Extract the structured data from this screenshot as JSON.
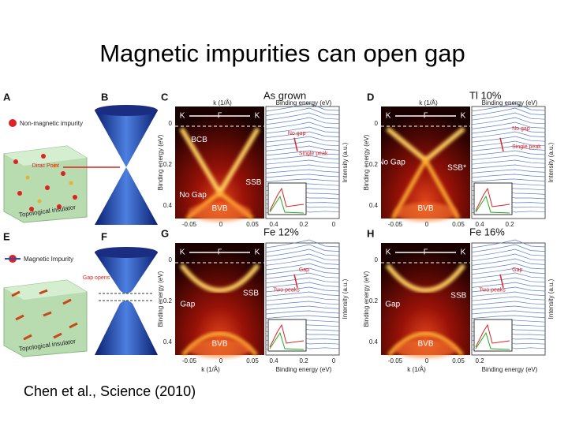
{
  "title": "Magnetic impurities can open gap",
  "citation": "Chen et al., Science (2010)",
  "figure": {
    "panel_a": {
      "label": "A",
      "legend": "Non-magnetic impurity",
      "dirac_point": "Dirac Point",
      "material": "Topological insulator"
    },
    "panel_b": {
      "label": "B"
    },
    "panel_c": {
      "label": "C",
      "title": "As grown",
      "k_axis": "k (1/Å)",
      "energy_axis": "Binding energy (eV)",
      "directions": [
        "K",
        "Γ",
        "K"
      ],
      "features": [
        "BCB",
        "SSB",
        "No Gap",
        "BVB"
      ],
      "energy_ticks": [
        "0",
        "0.2",
        "0.4"
      ],
      "k_ticks": [
        "-0.05",
        "0",
        "0.05"
      ],
      "spectrum": {
        "energy_axis": "Binding energy (eV)",
        "intensity_axis": "Intensity (a.u.)",
        "annotations": [
          "No gap",
          "Single peak"
        ],
        "energy_ticks": [
          "0.4",
          "0.2",
          "0"
        ]
      }
    },
    "panel_d": {
      "label": "D",
      "title": "Tl 10%",
      "k_axis": "k (1/Å)",
      "energy_axis": "Binding energy (eV)",
      "directions": [
        "K",
        "Γ",
        "K"
      ],
      "features": [
        "SSB*",
        "No Gap",
        "BVB"
      ],
      "energy_ticks": [
        "0",
        "0.2",
        "0.4"
      ],
      "k_ticks": [
        "-0.05",
        "0",
        "0.05"
      ],
      "spectrum": {
        "energy_axis": "Binding energy (eV)",
        "intensity_axis": "Intensity (a.u.)",
        "annotations": [
          "No gap",
          "Single peak"
        ],
        "energy_ticks": [
          "0.4",
          "0.2"
        ]
      }
    },
    "panel_e": {
      "label": "E",
      "legend": "Magnetic Impurity",
      "material": "Topological insulator"
    },
    "panel_f": {
      "label": "F",
      "annotation": "Gap opens"
    },
    "panel_g": {
      "label": "G",
      "title": "Fe 12%",
      "k_axis": "k (1/Å)",
      "energy_axis": "Binding energy (eV)",
      "directions": [
        "K",
        "Γ",
        "K"
      ],
      "features": [
        "SSB",
        "Gap",
        "BVB"
      ],
      "energy_ticks": [
        "0",
        "0.2",
        "0.4"
      ],
      "k_ticks": [
        "-0.05",
        "0",
        "0.05"
      ],
      "spectrum": {
        "energy_axis": "Binding energy (eV)",
        "intensity_axis": "Intensity (a.u.)",
        "annotations": [
          "Gap",
          "Two peaks"
        ],
        "energy_ticks": [
          "0.4",
          "0.2",
          "0"
        ]
      }
    },
    "panel_h": {
      "label": "H",
      "title": "Fe 16%",
      "k_axis": "k (1/Å)",
      "energy_axis": "Binding energy (eV)",
      "directions": [
        "K",
        "Γ",
        "K"
      ],
      "features": [
        "SSB",
        "Gap",
        "BVB"
      ],
      "energy_ticks": [
        "0",
        "0.2",
        "0.4"
      ],
      "k_ticks": [
        "-0.05",
        "0",
        "0.05"
      ],
      "spectrum": {
        "energy_axis": "Binding energy (eV)",
        "intensity_axis": "Intensity (a.u.)",
        "annotations": [
          "Gap",
          "Two peaks"
        ],
        "energy_ticks": [
          "0.2"
        ]
      }
    }
  }
}
